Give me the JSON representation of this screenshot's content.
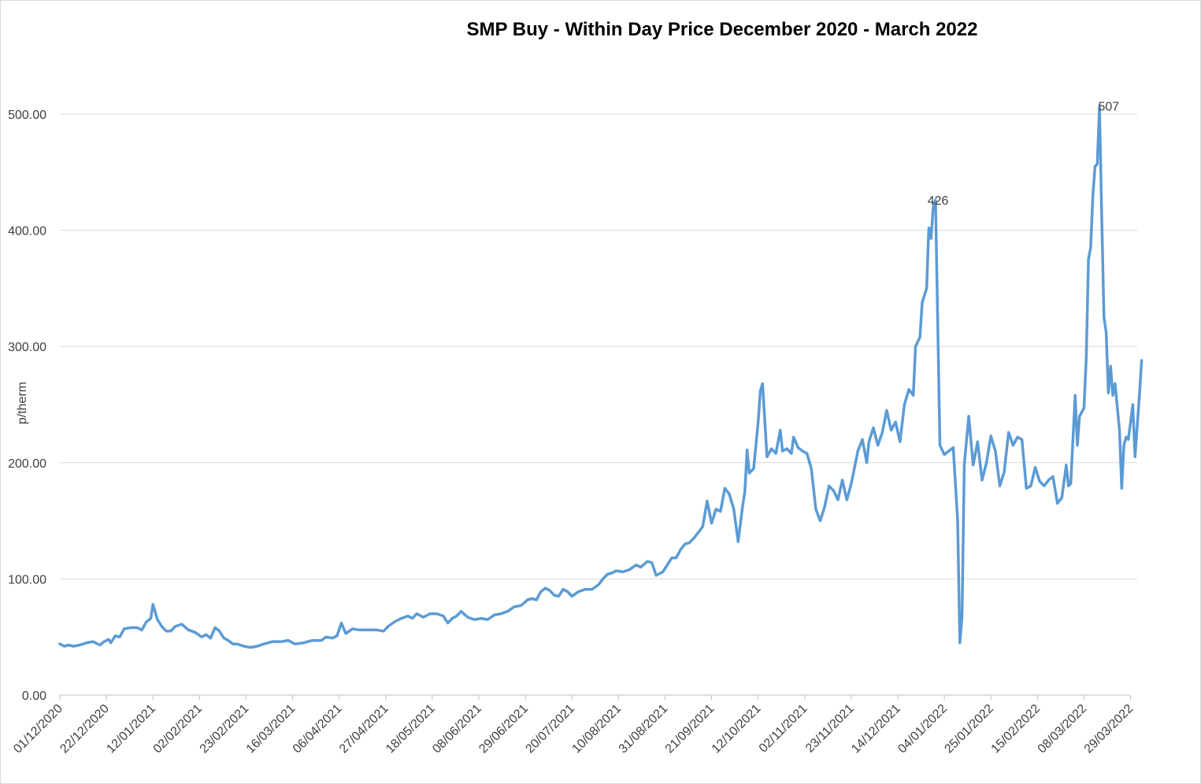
{
  "chart_data": {
    "type": "line",
    "title": "SMP Buy - Within Day Price December 2020 - March 2022",
    "xlabel": "",
    "ylabel": "p/therm",
    "ylim": [
      0,
      500
    ],
    "yticks": [
      "0.00",
      "100.00",
      "200.00",
      "300.00",
      "400.00",
      "500.00"
    ],
    "x_start": "2020-12-01",
    "x_end": "2022-04-01",
    "xticks": [
      "01/12/2020",
      "22/12/2020",
      "12/01/2021",
      "02/02/2021",
      "23/02/2021",
      "16/03/2021",
      "06/04/2021",
      "27/04/2021",
      "18/05/2021",
      "08/06/2021",
      "29/06/2021",
      "20/07/2021",
      "10/08/2021",
      "31/08/2021",
      "21/09/2021",
      "12/10/2021",
      "02/11/2021",
      "23/11/2021",
      "14/12/2021",
      "04/01/2022",
      "25/01/2022",
      "15/02/2022",
      "08/03/2022",
      "29/03/2022"
    ],
    "grid": true,
    "line_color": "#5b9bd5",
    "annotations": [
      {
        "x": "2021-12-21",
        "y": 426,
        "label": "426"
      },
      {
        "x": "2022-03-08",
        "y": 507,
        "label": "507"
      }
    ],
    "series": [
      {
        "name": "",
        "points": [
          [
            "2020-12-01",
            44
          ],
          [
            "2020-12-03",
            42
          ],
          [
            "2020-12-05",
            43
          ],
          [
            "2020-12-07",
            42
          ],
          [
            "2020-12-10",
            43
          ],
          [
            "2020-12-13",
            45
          ],
          [
            "2020-12-16",
            46
          ],
          [
            "2020-12-19",
            43
          ],
          [
            "2020-12-21",
            46
          ],
          [
            "2020-12-23",
            48
          ],
          [
            "2020-12-24",
            45
          ],
          [
            "2020-12-26",
            51
          ],
          [
            "2020-12-28",
            50
          ],
          [
            "2020-12-30",
            57
          ],
          [
            "2021-01-02",
            58
          ],
          [
            "2021-01-05",
            58
          ],
          [
            "2021-01-07",
            56
          ],
          [
            "2021-01-09",
            63
          ],
          [
            "2021-01-11",
            66
          ],
          [
            "2021-01-12",
            78
          ],
          [
            "2021-01-14",
            65
          ],
          [
            "2021-01-16",
            59
          ],
          [
            "2021-01-18",
            55
          ],
          [
            "2021-01-20",
            55
          ],
          [
            "2021-01-22",
            59
          ],
          [
            "2021-01-25",
            61
          ],
          [
            "2021-01-28",
            56
          ],
          [
            "2021-01-31",
            54
          ],
          [
            "2021-02-03",
            50
          ],
          [
            "2021-02-05",
            52
          ],
          [
            "2021-02-07",
            49
          ],
          [
            "2021-02-09",
            58
          ],
          [
            "2021-02-11",
            55
          ],
          [
            "2021-02-13",
            49
          ],
          [
            "2021-02-15",
            47
          ],
          [
            "2021-02-17",
            44
          ],
          [
            "2021-02-19",
            44
          ],
          [
            "2021-02-22",
            42
          ],
          [
            "2021-02-25",
            41
          ],
          [
            "2021-02-28",
            42
          ],
          [
            "2021-03-03",
            44
          ],
          [
            "2021-03-07",
            46
          ],
          [
            "2021-03-11",
            46
          ],
          [
            "2021-03-14",
            47
          ],
          [
            "2021-03-17",
            44
          ],
          [
            "2021-03-21",
            45
          ],
          [
            "2021-03-25",
            47
          ],
          [
            "2021-03-29",
            47
          ],
          [
            "2021-03-31",
            50
          ],
          [
            "2021-04-03",
            49
          ],
          [
            "2021-04-05",
            51
          ],
          [
            "2021-04-07",
            62
          ],
          [
            "2021-04-09",
            53
          ],
          [
            "2021-04-12",
            57
          ],
          [
            "2021-04-15",
            56
          ],
          [
            "2021-04-19",
            56
          ],
          [
            "2021-04-23",
            56
          ],
          [
            "2021-04-26",
            55
          ],
          [
            "2021-04-28",
            59
          ],
          [
            "2021-05-01",
            63
          ],
          [
            "2021-05-04",
            66
          ],
          [
            "2021-05-07",
            68
          ],
          [
            "2021-05-09",
            66
          ],
          [
            "2021-05-11",
            70
          ],
          [
            "2021-05-14",
            67
          ],
          [
            "2021-05-17",
            70
          ],
          [
            "2021-05-20",
            70
          ],
          [
            "2021-05-23",
            68
          ],
          [
            "2021-05-25",
            62
          ],
          [
            "2021-05-27",
            66
          ],
          [
            "2021-05-29",
            68
          ],
          [
            "2021-05-31",
            72
          ],
          [
            "2021-06-03",
            67
          ],
          [
            "2021-06-06",
            65
          ],
          [
            "2021-06-09",
            66
          ],
          [
            "2021-06-12",
            65
          ],
          [
            "2021-06-15",
            69
          ],
          [
            "2021-06-18",
            70
          ],
          [
            "2021-06-21",
            72
          ],
          [
            "2021-06-24",
            76
          ],
          [
            "2021-06-27",
            77
          ],
          [
            "2021-06-30",
            82
          ],
          [
            "2021-07-02",
            83
          ],
          [
            "2021-07-04",
            82
          ],
          [
            "2021-07-06",
            89
          ],
          [
            "2021-07-08",
            92
          ],
          [
            "2021-07-10",
            90
          ],
          [
            "2021-07-12",
            86
          ],
          [
            "2021-07-14",
            85
          ],
          [
            "2021-07-16",
            91
          ],
          [
            "2021-07-18",
            89
          ],
          [
            "2021-07-20",
            85
          ],
          [
            "2021-07-23",
            89
          ],
          [
            "2021-07-26",
            91
          ],
          [
            "2021-07-29",
            91
          ],
          [
            "2021-08-01",
            95
          ],
          [
            "2021-08-03",
            100
          ],
          [
            "2021-08-05",
            104
          ],
          [
            "2021-08-07",
            105
          ],
          [
            "2021-08-09",
            107
          ],
          [
            "2021-08-12",
            106
          ],
          [
            "2021-08-15",
            108
          ],
          [
            "2021-08-18",
            112
          ],
          [
            "2021-08-20",
            110
          ],
          [
            "2021-08-23",
            115
          ],
          [
            "2021-08-25",
            114
          ],
          [
            "2021-08-27",
            103
          ],
          [
            "2021-08-30",
            106
          ],
          [
            "2021-09-01",
            112
          ],
          [
            "2021-09-03",
            118
          ],
          [
            "2021-09-05",
            118
          ],
          [
            "2021-09-07",
            125
          ],
          [
            "2021-09-09",
            130
          ],
          [
            "2021-09-11",
            131
          ],
          [
            "2021-09-13",
            135
          ],
          [
            "2021-09-15",
            140
          ],
          [
            "2021-09-17",
            145
          ],
          [
            "2021-09-19",
            167
          ],
          [
            "2021-09-21",
            148
          ],
          [
            "2021-09-23",
            160
          ],
          [
            "2021-09-25",
            158
          ],
          [
            "2021-09-27",
            178
          ],
          [
            "2021-09-29",
            173
          ],
          [
            "2021-10-01",
            160
          ],
          [
            "2021-10-03",
            132
          ],
          [
            "2021-10-05",
            163
          ],
          [
            "2021-10-06",
            175
          ],
          [
            "2021-10-07",
            211
          ],
          [
            "2021-10-08",
            191
          ],
          [
            "2021-10-10",
            195
          ],
          [
            "2021-10-12",
            235
          ],
          [
            "2021-10-13",
            262
          ],
          [
            "2021-10-14",
            268
          ],
          [
            "2021-10-16",
            205
          ],
          [
            "2021-10-18",
            212
          ],
          [
            "2021-10-20",
            208
          ],
          [
            "2021-10-22",
            228
          ],
          [
            "2021-10-23",
            210
          ],
          [
            "2021-10-25",
            212
          ],
          [
            "2021-10-27",
            208
          ],
          [
            "2021-10-28",
            222
          ],
          [
            "2021-10-30",
            213
          ],
          [
            "2021-11-01",
            210
          ],
          [
            "2021-11-03",
            208
          ],
          [
            "2021-11-05",
            195
          ],
          [
            "2021-11-07",
            160
          ],
          [
            "2021-11-09",
            150
          ],
          [
            "2021-11-11",
            162
          ],
          [
            "2021-11-13",
            180
          ],
          [
            "2021-11-15",
            176
          ],
          [
            "2021-11-17",
            168
          ],
          [
            "2021-11-19",
            185
          ],
          [
            "2021-11-21",
            168
          ],
          [
            "2021-11-23",
            182
          ],
          [
            "2021-11-26",
            210
          ],
          [
            "2021-11-28",
            220
          ],
          [
            "2021-11-30",
            200
          ],
          [
            "2021-12-01",
            218
          ],
          [
            "2021-12-03",
            230
          ],
          [
            "2021-12-05",
            215
          ],
          [
            "2021-12-07",
            226
          ],
          [
            "2021-12-09",
            245
          ],
          [
            "2021-12-11",
            228
          ],
          [
            "2021-12-13",
            235
          ],
          [
            "2021-12-15",
            218
          ],
          [
            "2021-12-17",
            250
          ],
          [
            "2021-12-19",
            263
          ],
          [
            "2021-12-21",
            258
          ],
          [
            "2021-12-22",
            300
          ],
          [
            "2021-12-24",
            308
          ],
          [
            "2021-12-25",
            338
          ],
          [
            "2021-12-27",
            350
          ],
          [
            "2021-12-28",
            402
          ],
          [
            "2021-12-29",
            393
          ],
          [
            "2021-12-30",
            420
          ],
          [
            "2021-12-31",
            426
          ],
          [
            "2022-01-02",
            215
          ],
          [
            "2022-01-04",
            207
          ],
          [
            "2022-01-06",
            210
          ],
          [
            "2022-01-08",
            213
          ],
          [
            "2022-01-10",
            150
          ],
          [
            "2022-01-11",
            45
          ],
          [
            "2022-01-12",
            68
          ],
          [
            "2022-01-13",
            198
          ],
          [
            "2022-01-15",
            240
          ],
          [
            "2022-01-17",
            198
          ],
          [
            "2022-01-19",
            218
          ],
          [
            "2022-01-21",
            185
          ],
          [
            "2022-01-23",
            200
          ],
          [
            "2022-01-25",
            223
          ],
          [
            "2022-01-27",
            210
          ],
          [
            "2022-01-29",
            180
          ],
          [
            "2022-01-31",
            192
          ],
          [
            "2022-02-02",
            226
          ],
          [
            "2022-02-04",
            215
          ],
          [
            "2022-02-06",
            222
          ],
          [
            "2022-02-08",
            220
          ],
          [
            "2022-02-10",
            178
          ],
          [
            "2022-02-12",
            180
          ],
          [
            "2022-02-14",
            196
          ],
          [
            "2022-02-16",
            184
          ],
          [
            "2022-02-18",
            180
          ],
          [
            "2022-02-20",
            185
          ],
          [
            "2022-02-22",
            188
          ],
          [
            "2022-02-24",
            165
          ],
          [
            "2022-02-26",
            170
          ],
          [
            "2022-02-28",
            198
          ],
          [
            "2022-03-01",
            180
          ],
          [
            "2022-03-02",
            182
          ],
          [
            "2022-03-04",
            258
          ],
          [
            "2022-03-05",
            215
          ],
          [
            "2022-03-06",
            240
          ],
          [
            "2022-03-08",
            247
          ],
          [
            "2022-03-09",
            290
          ],
          [
            "2022-03-10",
            375
          ],
          [
            "2022-03-11",
            385
          ],
          [
            "2022-03-12",
            430
          ],
          [
            "2022-03-13",
            455
          ],
          [
            "2022-03-14",
            457
          ],
          [
            "2022-03-15",
            507
          ],
          [
            "2022-03-16",
            410
          ],
          [
            "2022-03-17",
            325
          ],
          [
            "2022-03-18",
            312
          ],
          [
            "2022-03-19",
            260
          ],
          [
            "2022-03-20",
            283
          ],
          [
            "2022-03-21",
            258
          ],
          [
            "2022-03-22",
            268
          ],
          [
            "2022-03-24",
            228
          ],
          [
            "2022-03-25",
            178
          ],
          [
            "2022-03-26",
            215
          ],
          [
            "2022-03-27",
            222
          ],
          [
            "2022-03-28",
            220
          ],
          [
            "2022-03-30",
            250
          ],
          [
            "2022-03-31",
            205
          ],
          [
            "2022-04-02",
            258
          ],
          [
            "2022-04-03",
            288
          ]
        ]
      }
    ]
  }
}
